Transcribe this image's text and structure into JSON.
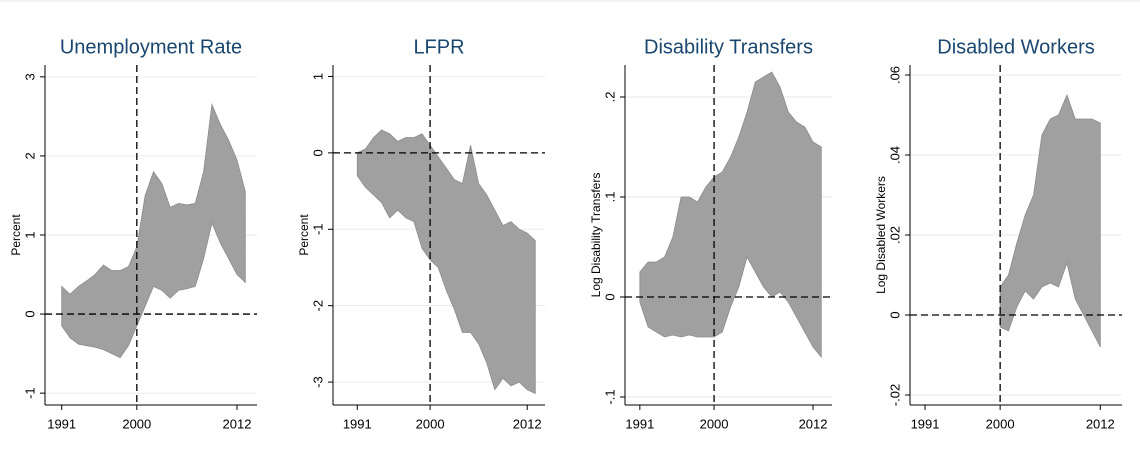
{
  "chart_data": [
    {
      "type": "band",
      "title": "Unemployment Rate",
      "ylabel": "Percent",
      "color": "#a0a0a0",
      "x": [
        1991,
        1992,
        1993,
        1994,
        1995,
        1996,
        1997,
        1998,
        1999,
        2000,
        2001,
        2002,
        2003,
        2004,
        2005,
        2006,
        2007,
        2008,
        2009,
        2010,
        2011,
        2012,
        2013
      ],
      "upper": [
        0.35,
        0.25,
        0.35,
        0.42,
        0.5,
        0.62,
        0.55,
        0.55,
        0.6,
        0.85,
        1.5,
        1.8,
        1.65,
        1.35,
        1.4,
        1.38,
        1.4,
        1.8,
        2.65,
        2.4,
        2.2,
        1.95,
        1.55
      ],
      "lower": [
        -0.15,
        -0.3,
        -0.38,
        -0.4,
        -0.42,
        -0.45,
        -0.5,
        -0.55,
        -0.4,
        -0.15,
        0.1,
        0.35,
        0.3,
        0.2,
        0.3,
        0.32,
        0.35,
        0.7,
        1.15,
        0.9,
        0.7,
        0.5,
        0.4
      ],
      "xlim": [
        1989,
        2014.4
      ],
      "xticks": [
        1991,
        2000,
        2012
      ],
      "ylim": [
        -1.15,
        3.15
      ],
      "yticks": [
        -1,
        0,
        1,
        2,
        3
      ],
      "grid": true,
      "vline": 2000,
      "hline": 0
    },
    {
      "type": "band",
      "title": "LFPR",
      "ylabel": "Percent",
      "color": "#a0a0a0",
      "x": [
        1991,
        1992,
        1993,
        1994,
        1995,
        1996,
        1997,
        1998,
        1999,
        2000,
        2001,
        2002,
        2003,
        2004,
        2005,
        2006,
        2007,
        2008,
        2009,
        2010,
        2011,
        2012,
        2013
      ],
      "upper": [
        0,
        0.05,
        0.2,
        0.3,
        0.25,
        0.15,
        0.2,
        0.2,
        0.25,
        0.1,
        -0.05,
        -0.2,
        -0.35,
        -0.4,
        0.1,
        -0.4,
        -0.55,
        -0.75,
        -0.95,
        -0.9,
        -1.0,
        -1.05,
        -1.15
      ],
      "lower": [
        -0.3,
        -0.45,
        -0.55,
        -0.65,
        -0.85,
        -0.75,
        -0.85,
        -0.9,
        -1.25,
        -1.4,
        -1.5,
        -1.8,
        -2.05,
        -2.35,
        -2.35,
        -2.5,
        -2.75,
        -3.1,
        -2.95,
        -3.05,
        -3.0,
        -3.1,
        -3.15
      ],
      "xlim": [
        1988,
        2014.2
      ],
      "xticks": [
        1991,
        2000,
        2012
      ],
      "ylim": [
        -3.3,
        1.15
      ],
      "yticks": [
        -3,
        -2,
        -1,
        0,
        1
      ],
      "grid": true,
      "vline": 2000,
      "hline": 0
    },
    {
      "type": "band",
      "title": "Disability Transfers",
      "ylabel": "Log Disability Transfers",
      "color": "#a0a0a0",
      "x": [
        1991,
        1992,
        1993,
        1994,
        1995,
        1996,
        1997,
        1998,
        1999,
        2000,
        2001,
        2002,
        2003,
        2004,
        2005,
        2006,
        2007,
        2008,
        2009,
        2010,
        2011,
        2012,
        2013
      ],
      "upper": [
        0.025,
        0.035,
        0.035,
        0.04,
        0.06,
        0.1,
        0.1,
        0.095,
        0.11,
        0.12,
        0.125,
        0.14,
        0.16,
        0.185,
        0.215,
        0.22,
        0.225,
        0.21,
        0.185,
        0.175,
        0.17,
        0.155,
        0.15
      ],
      "lower": [
        -0.005,
        -0.03,
        -0.035,
        -0.04,
        -0.038,
        -0.04,
        -0.038,
        -0.04,
        -0.04,
        -0.04,
        -0.035,
        -0.01,
        0.01,
        0.04,
        0.025,
        0.01,
        0.0,
        0.005,
        -0.005,
        -0.02,
        -0.035,
        -0.05,
        -0.06
      ],
      "xlim": [
        1989.2,
        2014.3
      ],
      "xticks": [
        1991,
        2000,
        2012
      ],
      "ylim": [
        -0.108,
        0.232
      ],
      "yticks": [
        {
          "value": -0.1,
          "label": "-.1"
        },
        0,
        {
          "value": 0.1,
          "label": ".1"
        },
        {
          "value": 0.2,
          "label": ".2"
        }
      ],
      "grid": true,
      "vline": 2000,
      "hline": 0
    },
    {
      "type": "band",
      "title": "Disabled Workers",
      "ylabel": "Log Disabled Workers",
      "color": "#a0a0a0",
      "x": [
        2000,
        2001,
        2002,
        2003,
        2004,
        2005,
        2006,
        2007,
        2008,
        2009,
        2010,
        2011,
        2012
      ],
      "upper": [
        0.007,
        0.01,
        0.018,
        0.025,
        0.03,
        0.045,
        0.049,
        0.05,
        0.055,
        0.049,
        0.049,
        0.049,
        0.048
      ],
      "lower": [
        -0.003,
        -0.004,
        0.002,
        0.006,
        0.004,
        0.007,
        0.008,
        0.007,
        0.013,
        0.004,
        0.0,
        -0.004,
        -0.008
      ],
      "xlim": [
        1989.2,
        2014.6
      ],
      "xticks": [
        1991,
        2000,
        2012
      ],
      "ylim": [
        -0.0225,
        0.0625
      ],
      "yticks": [
        {
          "value": -0.02,
          "label": "-.02"
        },
        0,
        {
          "value": 0.02,
          "label": ".02"
        },
        {
          "value": 0.04,
          "label": ".04"
        },
        {
          "value": 0.06,
          "label": ".06"
        }
      ],
      "grid": true,
      "vline": 2000,
      "hline": 0
    }
  ]
}
